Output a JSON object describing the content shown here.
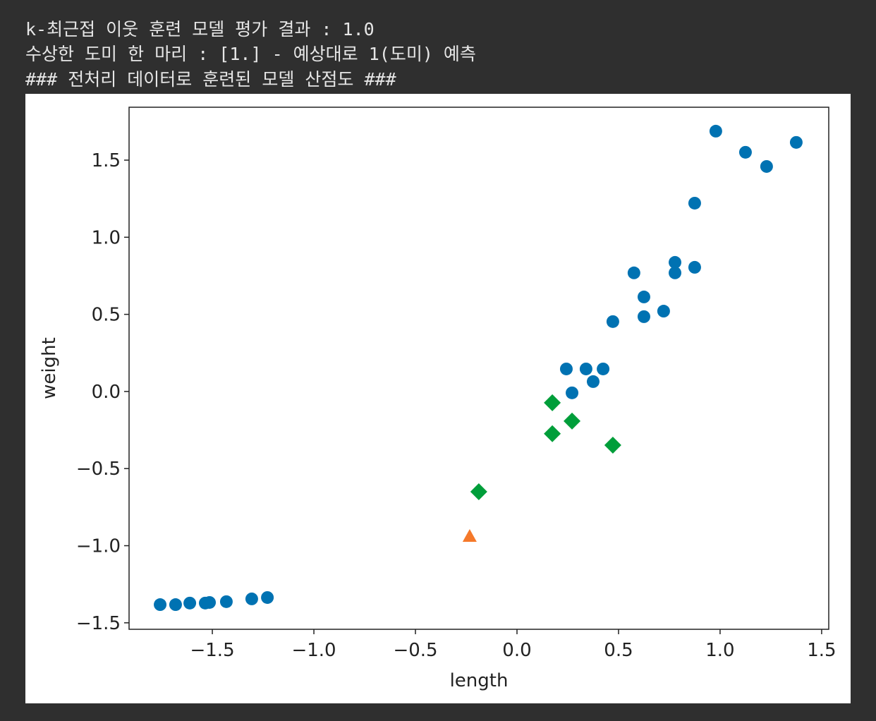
{
  "output_lines": [
    "k-최근접 이웃 훈련 모델 평가 결과 : 1.0",
    "수상한 도미 한 마리 : [1.] - 예상대로 1(도미) 예측",
    "### 전처리 데이터로 훈련된 모델 산점도 ###"
  ],
  "chart_data": {
    "type": "scatter",
    "xlabel": "length",
    "ylabel": "weight",
    "xlim": [
      -1.91,
      1.535
    ],
    "ylim": [
      -1.542,
      1.843
    ],
    "xticks": [
      {
        "value": -1.5,
        "label": "−1.5"
      },
      {
        "value": -1,
        "label": "−1.0"
      },
      {
        "value": -0.5,
        "label": "−0.5"
      },
      {
        "value": 0,
        "label": "0.0"
      },
      0.5,
      {
        "value": 1,
        "label": "1.0"
      },
      1.5
    ],
    "yticks": [
      {
        "value": -1.5,
        "label": "−1.5"
      },
      {
        "value": -1,
        "label": "−1.0"
      },
      {
        "value": -0.5,
        "label": "−0.5"
      },
      {
        "value": 0,
        "label": "0.0"
      },
      0.5,
      {
        "value": 1,
        "label": "1.0"
      },
      1.5
    ],
    "grid": false,
    "series": [
      {
        "color": "#0072b2",
        "marker": "circle",
        "x": [
          0.979,
          1.125,
          1.229,
          1.375,
          0.875,
          0.778,
          0.778,
          0.875,
          0.576,
          0.625,
          0.625,
          0.722,
          0.472,
          0.243,
          0.34,
          0.424,
          0.375,
          0.271,
          -1.757,
          -1.681,
          -1.611,
          -1.535,
          -1.514,
          -1.431,
          -1.306,
          -1.229
        ],
        "values": [
          1.688,
          1.551,
          1.459,
          1.615,
          1.221,
          0.837,
          0.769,
          0.805,
          0.769,
          0.613,
          0.485,
          0.521,
          0.453,
          0.146,
          0.146,
          0.146,
          0.064,
          -0.009,
          -1.382,
          -1.382,
          -1.372,
          -1.372,
          -1.368,
          -1.363,
          -1.345,
          -1.336
        ]
      },
      {
        "color": "#009e3a",
        "marker": "diamond",
        "x": [
          0.174,
          0.271,
          0.174,
          0.472,
          -0.188
        ],
        "values": [
          -0.073,
          -0.192,
          -0.274,
          -0.348,
          -0.65
        ]
      },
      {
        "color": "#f5792a",
        "marker": "triangle",
        "x": [
          -0.233
        ],
        "values": [
          -0.938
        ]
      }
    ]
  }
}
